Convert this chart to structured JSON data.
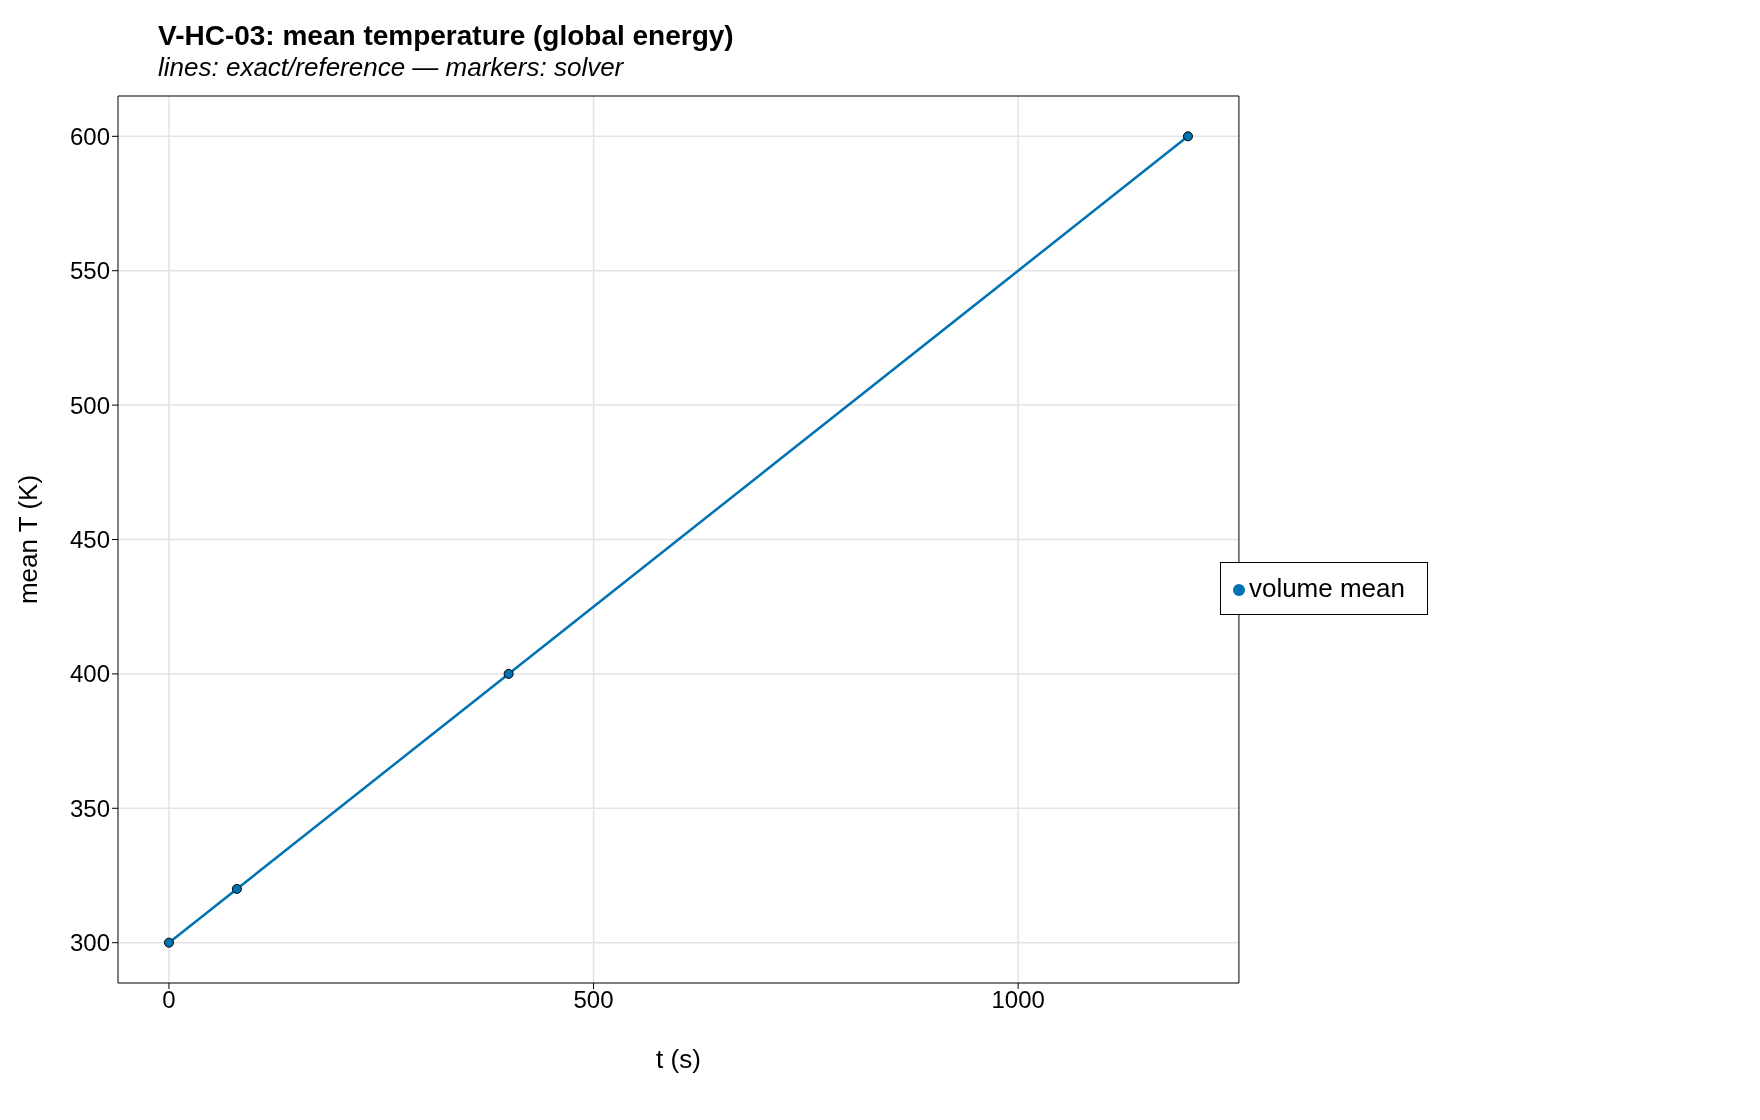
{
  "chart_data": {
    "type": "line",
    "title": "V-HC-03: mean temperature (global energy)",
    "subtitle": "lines: exact/reference — markers: solver",
    "xlabel": "t (s)",
    "ylabel": "mean T (K)",
    "series": [
      {
        "x": [
          0,
          1200
        ],
        "values": [
          300,
          600
        ],
        "color": "#0072b2",
        "marker": "none",
        "line_style": "solid"
      },
      {
        "type": "scatter",
        "name": "volume mean",
        "x": [
          0,
          80,
          400,
          1200
        ],
        "values": [
          300,
          320,
          400,
          600
        ],
        "color": "#0072b2",
        "marker": "circle"
      }
    ],
    "xlim": [
      -60,
      1260
    ],
    "xticks": [
      0,
      500,
      1000
    ],
    "ylim": [
      285,
      615
    ],
    "yticks": [
      300,
      350,
      400,
      450,
      500,
      550,
      600
    ],
    "grid": true,
    "legend": "right"
  }
}
